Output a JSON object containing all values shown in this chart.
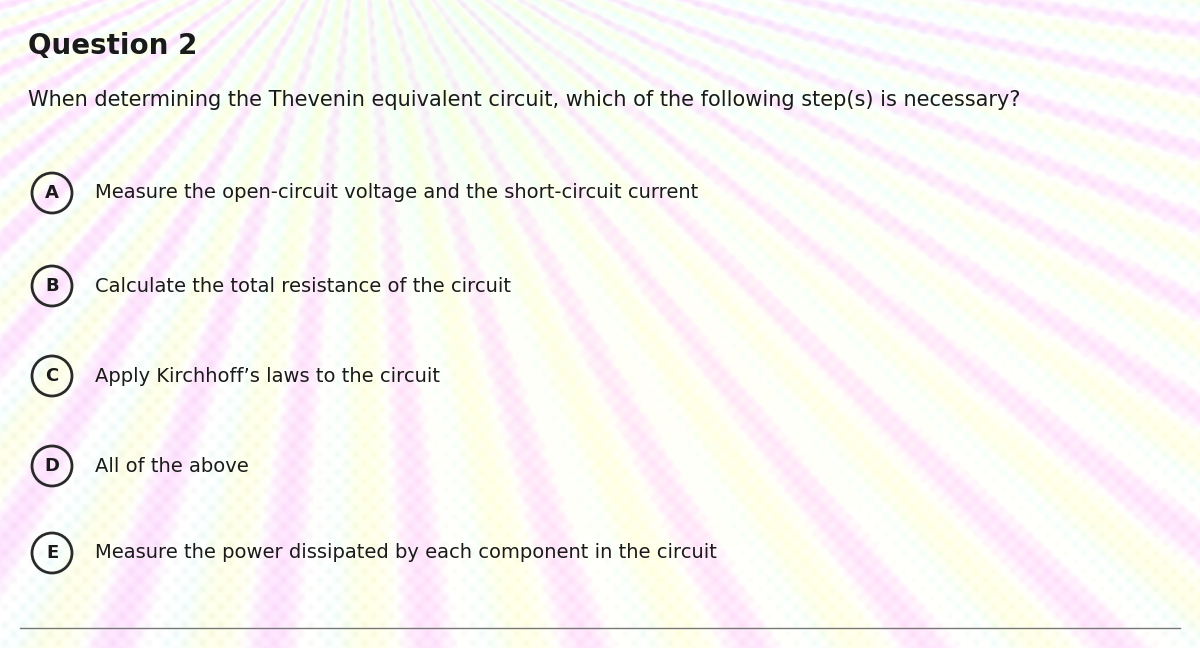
{
  "title": "Question 2",
  "question": "When determining the Thevenin equivalent circuit, which of the following step(s) is necessary?",
  "options": [
    {
      "label": "A",
      "text": "Measure the open-circuit voltage and the short-circuit current"
    },
    {
      "label": "B",
      "text": "Calculate the total resistance of the circuit"
    },
    {
      "label": "C",
      "text": "Apply Kirchhoff’s laws to the circuit"
    },
    {
      "label": "D",
      "text": "All of the above"
    },
    {
      "label": "E",
      "text": "Measure the power dissipated by each component in the circuit"
    }
  ],
  "title_fontsize": 20,
  "question_fontsize": 15,
  "option_fontsize": 14,
  "label_fontsize": 13,
  "text_color": "#1a1a1a",
  "circle_edge_color": "#2a2a2a",
  "circle_face_color": "none",
  "figsize": [
    12.0,
    6.48
  ],
  "dpi": 100
}
